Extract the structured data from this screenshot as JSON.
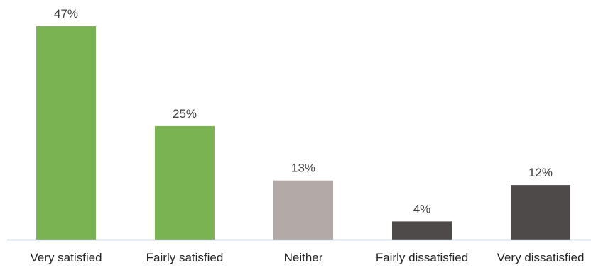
{
  "chart_data": {
    "type": "bar",
    "categories": [
      "Very satisfied",
      "Fairly satisfied",
      "Neither",
      "Fairly dissatisfied",
      "Very dissatisfied"
    ],
    "values": [
      47,
      25,
      13,
      4,
      12
    ],
    "value_labels": [
      "47%",
      "25%",
      "13%",
      "4%",
      "12%"
    ],
    "bar_colors": [
      "#7ab351",
      "#7ab351",
      "#b3aaa8",
      "#4f4a4a",
      "#4f4a4a"
    ],
    "title": "",
    "xlabel": "",
    "ylabel": "",
    "ylim": [
      0,
      47
    ],
    "grid": false,
    "legend": "none"
  },
  "colors": {
    "axis": "#b7c3cf",
    "satisfied": "#7ab351",
    "neutral": "#b3aaa8",
    "dissatisfied": "#4f4a4a"
  }
}
